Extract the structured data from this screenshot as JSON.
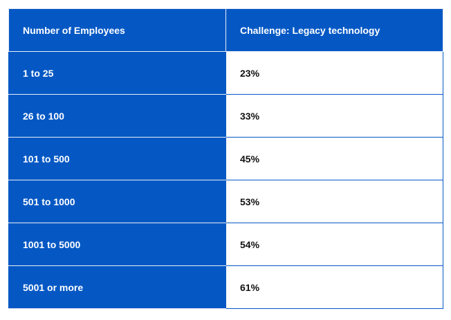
{
  "chart_data": {
    "type": "table",
    "columns": [
      "Number of Employees",
      "Challenge: Legacy technology"
    ],
    "rows": [
      [
        "1 to 25",
        "23%"
      ],
      [
        "26 to 100",
        "33%"
      ],
      [
        "101 to 500",
        "45%"
      ],
      [
        "501 to 1000",
        "53%"
      ],
      [
        "1001 to 5000",
        "54%"
      ],
      [
        "5001 or more",
        "61%"
      ]
    ],
    "categories": [
      "1 to 25",
      "26 to 100",
      "101 to 500",
      "501 to 1000",
      "1001 to 5000",
      "5001 or more"
    ],
    "values": [
      23,
      33,
      45,
      53,
      54,
      61
    ]
  },
  "colors": {
    "header_bg": "#0558c4",
    "label_bg": "#0558c4",
    "value_bg": "#ffffff",
    "header_text": "#ffffff",
    "value_text": "#111111"
  }
}
